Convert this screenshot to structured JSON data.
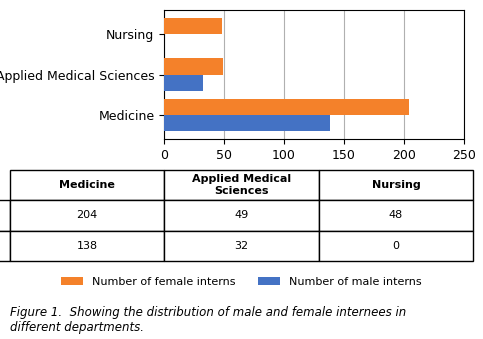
{
  "chart_data": {
    "type": "bar",
    "orientation": "horizontal",
    "categories": [
      "Medicine",
      "Applied Medical Sciences",
      "Nursing"
    ],
    "series": [
      {
        "name": "Number of female interns",
        "color": "#F4812A",
        "values": [
          204,
          49,
          48
        ]
      },
      {
        "name": "Number of male interns",
        "color": "#4472C4",
        "values": [
          138,
          32,
          0
        ]
      }
    ],
    "xlim": [
      0,
      250
    ],
    "xticks": [
      0,
      50,
      100,
      150,
      200,
      250
    ],
    "grid": true,
    "legend": "lower center",
    "table": {
      "columns": [
        "Medicine",
        "Applied Medical\nSciences",
        "Nursing"
      ]
    },
    "caption": "Figure 1.  Showing the distribution of male and female internees in\ndifferent departments."
  }
}
